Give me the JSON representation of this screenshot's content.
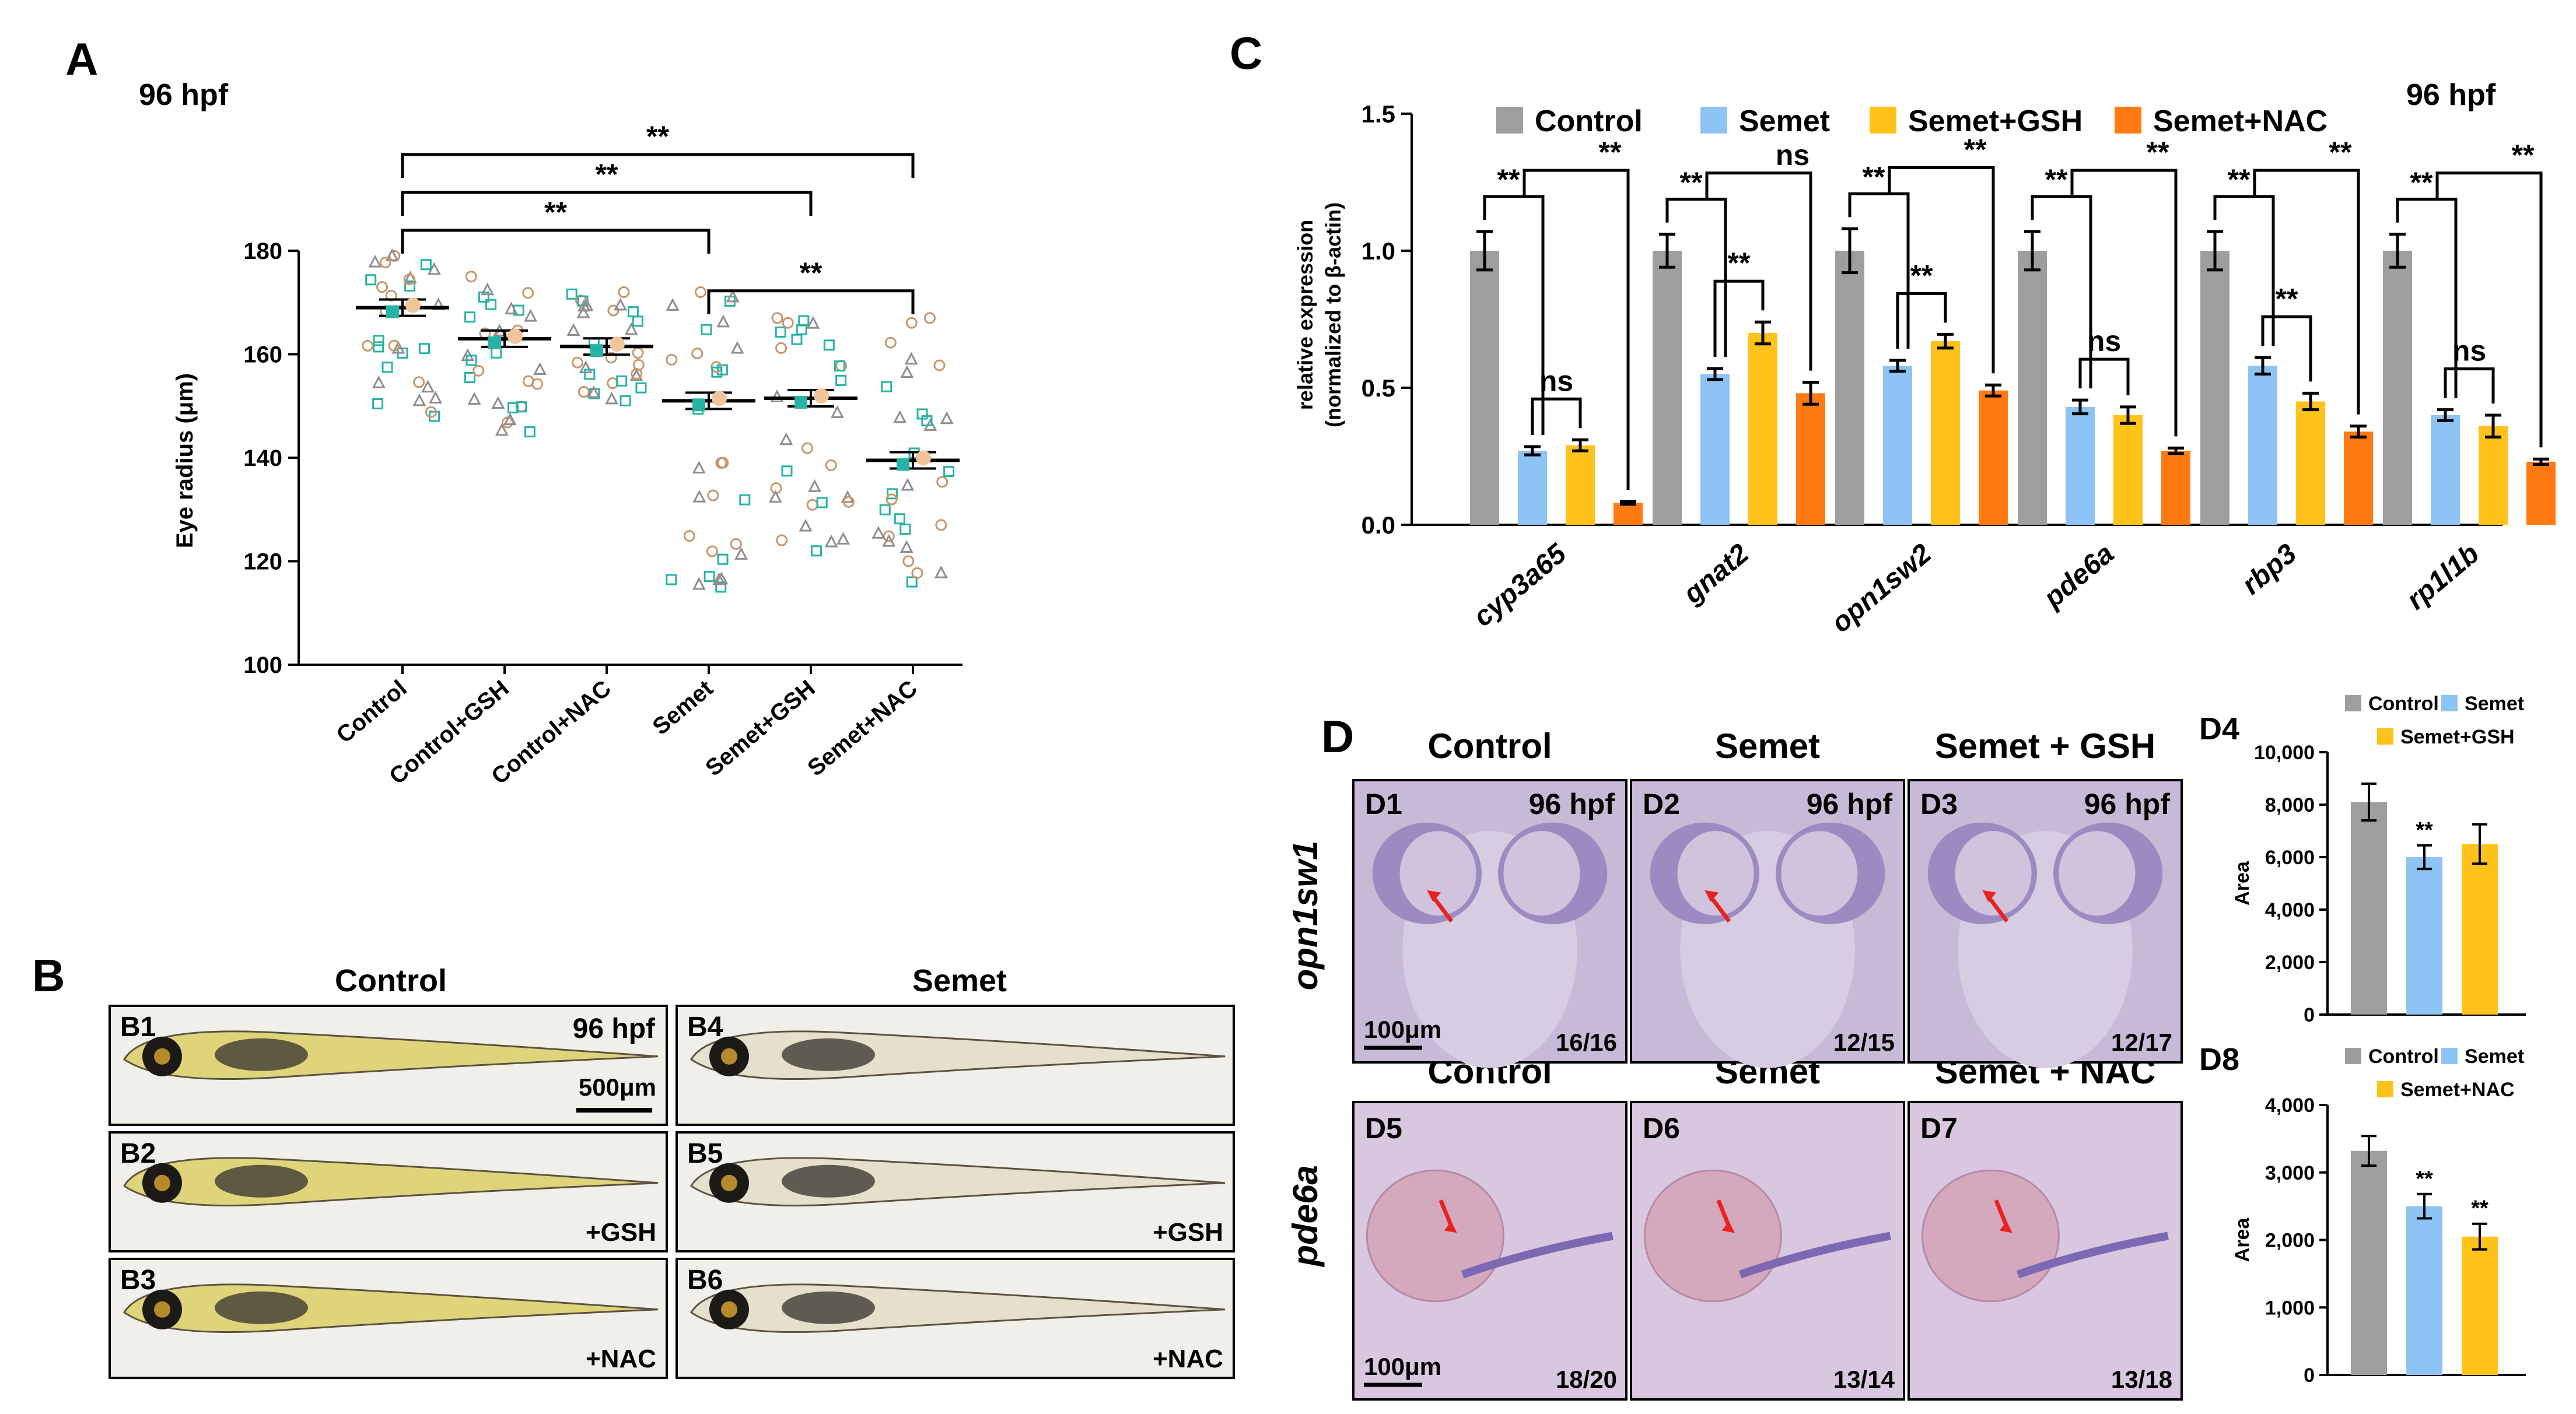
{
  "panels": {
    "A": {
      "letter": "A",
      "stage": "96 hpf"
    },
    "B": {
      "letter": "B",
      "header_control": "Control",
      "header_semet": "Semet"
    },
    "C": {
      "letter": "C",
      "stage": "96 hpf"
    },
    "D": {
      "letter": "D",
      "gene_row1": "opn1sw1",
      "gene_row2": "pde6a"
    }
  },
  "larva_images": [
    {
      "id": "B1",
      "stage": "96 hpf",
      "scale": "500μm",
      "treatment": ""
    },
    {
      "id": "B2",
      "treatment": "+GSH"
    },
    {
      "id": "B3",
      "treatment": "+NAC"
    },
    {
      "id": "B4",
      "treatment": ""
    },
    {
      "id": "B5",
      "treatment": "+GSH"
    },
    {
      "id": "B6",
      "treatment": "+NAC"
    }
  ],
  "ish_images": {
    "headers_row1": [
      "Control",
      "Semet",
      "Semet + GSH"
    ],
    "headers_row2": [
      "Control",
      "Semet",
      "Semet + NAC"
    ],
    "row1": [
      {
        "id": "D1",
        "stage": "96 hpf",
        "count": "16/16",
        "scale": "100μm"
      },
      {
        "id": "D2",
        "stage": "96 hpf",
        "count": "12/15"
      },
      {
        "id": "D3",
        "stage": "96 hpf",
        "count": "12/17"
      }
    ],
    "row2": [
      {
        "id": "D5",
        "count": "18/20",
        "scale": "100μm"
      },
      {
        "id": "D6",
        "count": "13/14"
      },
      {
        "id": "D7",
        "count": "13/18"
      }
    ]
  },
  "colors": {
    "control": "#9e9e9e",
    "semet": "#8ec3f5",
    "gsh": "#ffc21a",
    "nac": "#ff7a12",
    "teal": "#26b3a5",
    "tan": "#f2c49a",
    "ish_bg": "#c6bad6",
    "larva_bg": "#f1efe9"
  },
  "chart_data": [
    {
      "id": "A",
      "type": "scatter",
      "ylabel": "Eye radius (μm)",
      "ylim": [
        100,
        180
      ],
      "yticks": [
        "100",
        "120",
        "140",
        "160",
        "180"
      ],
      "categories": [
        "Control",
        "Control+GSH",
        "Control+NAC",
        "Semet",
        "Semet+GSH",
        "Semet+NAC"
      ],
      "means": [
        169,
        163,
        161.5,
        151,
        151.5,
        139.5
      ],
      "ranges": [
        [
          148,
          179
        ],
        [
          145,
          175
        ],
        [
          151,
          172
        ],
        [
          115,
          172
        ],
        [
          122,
          167
        ],
        [
          116,
          167
        ]
      ],
      "significance": [
        {
          "from": 0,
          "to": 5,
          "label": "**"
        },
        {
          "from": 0,
          "to": 4,
          "label": "**"
        },
        {
          "from": 0,
          "to": 3,
          "label": "**"
        },
        {
          "from": 3,
          "to": 5,
          "label": "**"
        }
      ]
    },
    {
      "id": "C",
      "type": "bar",
      "ylabel_line1": "relative expression",
      "ylabel_line2": "(normalized to β-actin)",
      "ylim": [
        0,
        1.5
      ],
      "yticks": [
        "0.0",
        "0.5",
        "1.0",
        "1.5"
      ],
      "categories": [
        "cyp3a65",
        "gnat2",
        "opn1sw2",
        "pde6a",
        "rbp3",
        "rp1l1b"
      ],
      "series": [
        {
          "name": "Control",
          "values": [
            1.0,
            1.0,
            1.0,
            1.0,
            1.0,
            1.0
          ],
          "errors": [
            0.07,
            0.06,
            0.08,
            0.07,
            0.07,
            0.06
          ]
        },
        {
          "name": "Semet",
          "values": [
            0.27,
            0.55,
            0.58,
            0.43,
            0.58,
            0.4
          ],
          "errors": [
            0.015,
            0.02,
            0.02,
            0.025,
            0.03,
            0.02
          ]
        },
        {
          "name": "Semet+GSH",
          "values": [
            0.29,
            0.7,
            0.67,
            0.4,
            0.45,
            0.36
          ],
          "errors": [
            0.02,
            0.04,
            0.025,
            0.03,
            0.03,
            0.04
          ]
        },
        {
          "name": "Semet+NAC",
          "values": [
            0.08,
            0.48,
            0.49,
            0.27,
            0.34,
            0.23
          ],
          "errors": [
            0.005,
            0.04,
            0.02,
            0.01,
            0.02,
            0.01
          ]
        }
      ],
      "significance_labels": [
        [
          "**",
          "ns",
          "**"
        ],
        [
          "**",
          "**",
          "ns"
        ],
        [
          "**",
          "**",
          "**"
        ],
        [
          "**",
          "ns",
          "**"
        ],
        [
          "**",
          "**",
          "**"
        ],
        [
          "**",
          "ns",
          "**"
        ]
      ]
    },
    {
      "id": "D4",
      "type": "bar",
      "ylabel": "Area",
      "ylim": [
        0,
        10000
      ],
      "yticks": [
        "0",
        "2,000",
        "4,000",
        "6,000",
        "8,000",
        "10,000"
      ],
      "series": [
        {
          "name": "Control",
          "value": 8100,
          "error": 700,
          "sig": ""
        },
        {
          "name": "Semet",
          "value": 6000,
          "error": 450,
          "sig": "**"
        },
        {
          "name": "Semet+GSH",
          "value": 6500,
          "error": 750,
          "sig": ""
        }
      ]
    },
    {
      "id": "D8",
      "type": "bar",
      "ylabel": "Area",
      "ylim": [
        0,
        4000
      ],
      "yticks": [
        "0",
        "1,000",
        "2,000",
        "3,000",
        "4,000"
      ],
      "series": [
        {
          "name": "Control",
          "value": 3320,
          "error": 220,
          "sig": ""
        },
        {
          "name": "Semet",
          "value": 2500,
          "error": 180,
          "sig": "**"
        },
        {
          "name": "Semet+NAC",
          "value": 2050,
          "error": 190,
          "sig": "**"
        }
      ]
    }
  ]
}
